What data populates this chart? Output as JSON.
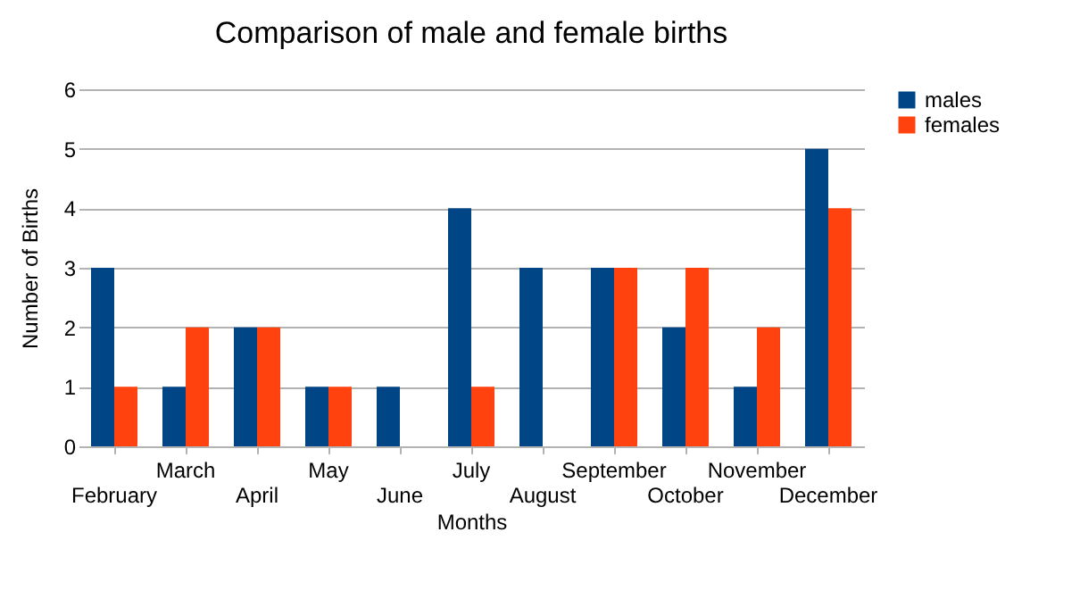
{
  "chart_data": {
    "type": "bar",
    "title": "Comparison of male and female births",
    "xlabel": "Months",
    "ylabel": "Number of Births",
    "categories": [
      "February",
      "March",
      "April",
      "May",
      "June",
      "July",
      "August",
      "September",
      "October",
      "November",
      "December"
    ],
    "series": [
      {
        "name": "males",
        "color": "#004586",
        "values": [
          3,
          1,
          2,
          1,
          1,
          4,
          3,
          3,
          2,
          1,
          5
        ]
      },
      {
        "name": "females",
        "color": "#ff420e",
        "values": [
          1,
          2,
          2,
          1,
          0,
          1,
          0,
          3,
          3,
          2,
          4
        ]
      }
    ],
    "ylim": [
      0,
      6
    ],
    "yticks": [
      0,
      1,
      2,
      3,
      4,
      5,
      6
    ],
    "grid": "y",
    "legend": "right"
  }
}
